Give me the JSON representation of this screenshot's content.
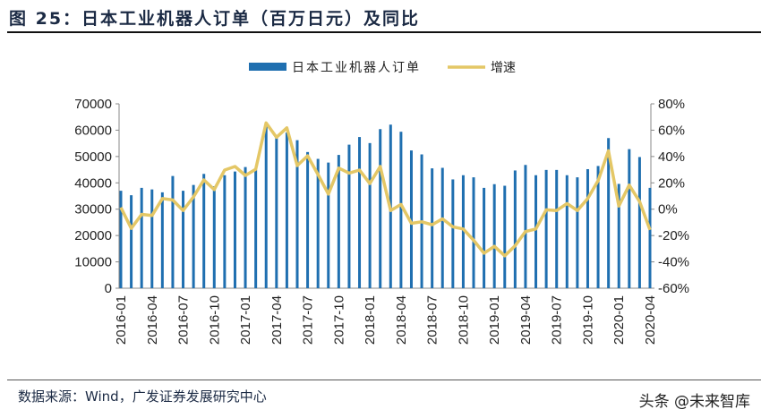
{
  "title": "图 25：日本工业机器人订单（百万日元）及同比",
  "source": "数据来源：Wind，广发证券发展研究中心",
  "watermark": "头条 @未来智库",
  "chart_data": {
    "type": "bar+line",
    "legend_position": "top",
    "grid": false,
    "colors": {
      "bars": "#1f6fb0",
      "line": "#e4c766"
    },
    "left_axis": {
      "range": [
        0,
        70000
      ],
      "ticks": [
        "0",
        "10000",
        "20000",
        "30000",
        "40000",
        "50000",
        "60000",
        "70000"
      ]
    },
    "right_axis": {
      "range": [
        -60,
        80
      ],
      "ticks": [
        "-60%",
        "-40%",
        "-20%",
        "0%",
        "20%",
        "40%",
        "60%",
        "80%"
      ]
    },
    "x_tick_labels": [
      "2016-01",
      "2016-04",
      "2016-07",
      "2016-10",
      "2017-01",
      "2017-04",
      "2017-07",
      "2017-10",
      "2018-01",
      "2018-04",
      "2018-07",
      "2018-10",
      "2019-01",
      "2019-04",
      "2019-07",
      "2019-10",
      "2020-01",
      "2020-04"
    ],
    "categories": [
      "2016-01",
      "2016-02",
      "2016-03",
      "2016-04",
      "2016-05",
      "2016-06",
      "2016-07",
      "2016-08",
      "2016-09",
      "2016-10",
      "2016-11",
      "2016-12",
      "2017-01",
      "2017-02",
      "2017-03",
      "2017-04",
      "2017-05",
      "2017-06",
      "2017-07",
      "2017-08",
      "2017-09",
      "2017-10",
      "2017-11",
      "2017-12",
      "2018-01",
      "2018-02",
      "2018-03",
      "2018-04",
      "2018-05",
      "2018-06",
      "2018-07",
      "2018-08",
      "2018-09",
      "2018-10",
      "2018-11",
      "2018-12",
      "2019-01",
      "2019-02",
      "2019-03",
      "2019-04",
      "2019-05",
      "2019-06",
      "2019-07",
      "2019-08",
      "2019-09",
      "2019-10",
      "2019-11",
      "2019-12",
      "2020-01",
      "2020-02",
      "2020-03",
      "2020-04"
    ],
    "series": [
      {
        "name": "日本工业机器人订单",
        "axis": "left",
        "type": "bar",
        "values": [
          37000,
          35300,
          38100,
          37500,
          36400,
          42600,
          37000,
          39200,
          43400,
          38700,
          42900,
          44300,
          46000,
          44900,
          62000,
          57400,
          59100,
          56200,
          51700,
          49100,
          47700,
          50600,
          54500,
          57400,
          55100,
          60400,
          62100,
          59400,
          52300,
          50800,
          45500,
          45700,
          41300,
          42900,
          42100,
          38100,
          39500,
          38900,
          44700,
          46800,
          42900,
          44900,
          44900,
          42900,
          42100,
          45200,
          46400,
          57000,
          39600,
          52800,
          49800,
          38100
        ]
      },
      {
        "name": "增速",
        "axis": "right",
        "type": "line",
        "values": [
          1.3,
          -14.6,
          -3.9,
          -4.8,
          8.1,
          7.0,
          -1.0,
          9.3,
          22.2,
          14.9,
          29.7,
          32.4,
          25.6,
          30.3,
          65.5,
          54.6,
          61.8,
          33.1,
          40.5,
          26.3,
          11.5,
          31.2,
          27.4,
          29.7,
          19.5,
          32.4,
          -1.0,
          3.6,
          -10.7,
          -9.6,
          -11.8,
          -7.3,
          -13.4,
          -15.0,
          -23.6,
          -33.4,
          -28.2,
          -35.4,
          -27.7,
          -17.0,
          -15.0,
          -0.5,
          -1.0,
          4.3,
          -1.0,
          8.1,
          21.7,
          44.4,
          2.4,
          18.3,
          5.8,
          -15.7
        ]
      }
    ]
  }
}
